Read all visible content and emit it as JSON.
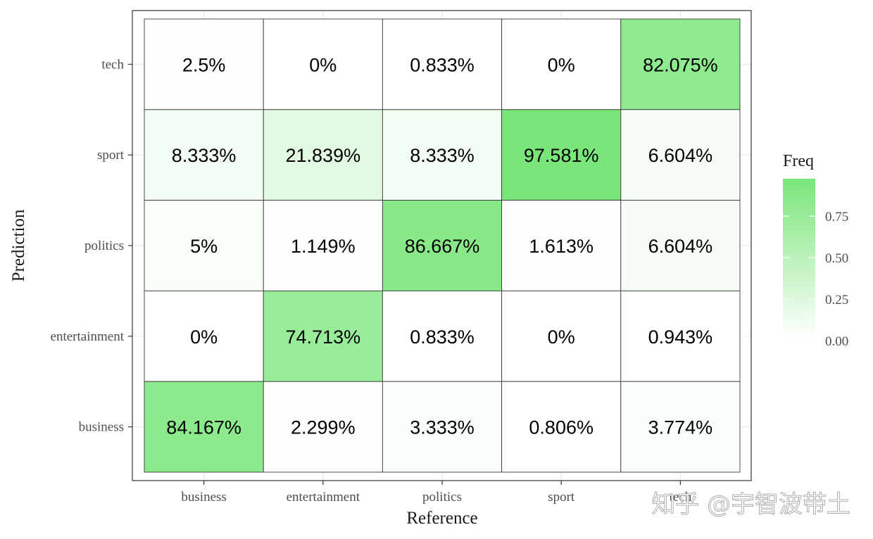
{
  "chart_data": {
    "type": "heatmap",
    "x_categories": [
      "business",
      "entertainment",
      "politics",
      "sport",
      "tech"
    ],
    "y_categories": [
      "business",
      "entertainment",
      "politics",
      "sport",
      "tech"
    ],
    "xlabel": "Reference",
    "ylabel": "Prediction",
    "cells": [
      {
        "x": "business",
        "y": "tech",
        "value": 0.025,
        "label": "2.5%"
      },
      {
        "x": "entertainment",
        "y": "tech",
        "value": 0.0,
        "label": "0%"
      },
      {
        "x": "politics",
        "y": "tech",
        "value": 0.00833,
        "label": "0.833%"
      },
      {
        "x": "sport",
        "y": "tech",
        "value": 0.0,
        "label": "0%"
      },
      {
        "x": "tech",
        "y": "tech",
        "value": 0.82075,
        "label": "82.075%"
      },
      {
        "x": "business",
        "y": "sport",
        "value": 0.08333,
        "label": "8.333%"
      },
      {
        "x": "entertainment",
        "y": "sport",
        "value": 0.21839,
        "label": "21.839%"
      },
      {
        "x": "politics",
        "y": "sport",
        "value": 0.08333,
        "label": "8.333%"
      },
      {
        "x": "sport",
        "y": "sport",
        "value": 0.97581,
        "label": "97.581%"
      },
      {
        "x": "tech",
        "y": "sport",
        "value": 0.06604,
        "label": "6.604%"
      },
      {
        "x": "business",
        "y": "politics",
        "value": 0.05,
        "label": "5%"
      },
      {
        "x": "entertainment",
        "y": "politics",
        "value": 0.01149,
        "label": "1.149%"
      },
      {
        "x": "politics",
        "y": "politics",
        "value": 0.86667,
        "label": "86.667%"
      },
      {
        "x": "sport",
        "y": "politics",
        "value": 0.01613,
        "label": "1.613%"
      },
      {
        "x": "tech",
        "y": "politics",
        "value": 0.06604,
        "label": "6.604%"
      },
      {
        "x": "business",
        "y": "entertainment",
        "value": 0.0,
        "label": "0%"
      },
      {
        "x": "entertainment",
        "y": "entertainment",
        "value": 0.74713,
        "label": "74.713%"
      },
      {
        "x": "politics",
        "y": "entertainment",
        "value": 0.00833,
        "label": "0.833%"
      },
      {
        "x": "sport",
        "y": "entertainment",
        "value": 0.0,
        "label": "0%"
      },
      {
        "x": "tech",
        "y": "entertainment",
        "value": 0.00943,
        "label": "0.943%"
      },
      {
        "x": "business",
        "y": "business",
        "value": 0.84167,
        "label": "84.167%"
      },
      {
        "x": "entertainment",
        "y": "business",
        "value": 0.02299,
        "label": "2.299%"
      },
      {
        "x": "politics",
        "y": "business",
        "value": 0.03333,
        "label": "3.333%"
      },
      {
        "x": "sport",
        "y": "business",
        "value": 0.00806,
        "label": "0.806%"
      },
      {
        "x": "tech",
        "y": "business",
        "value": 0.03774,
        "label": "3.774%"
      }
    ],
    "legend": {
      "title": "Freq",
      "ticks": [
        {
          "value": 0.0,
          "label": "0.00"
        },
        {
          "value": 0.25,
          "label": "0.25"
        },
        {
          "value": 0.5,
          "label": "0.50"
        },
        {
          "value": 0.75,
          "label": "0.75"
        }
      ],
      "range": [
        0,
        0.97581
      ],
      "position": "right"
    },
    "color_low": "#ffffff",
    "color_high": "#7ae67a",
    "grid": true
  },
  "watermark": "知乎 @宇智波带土"
}
